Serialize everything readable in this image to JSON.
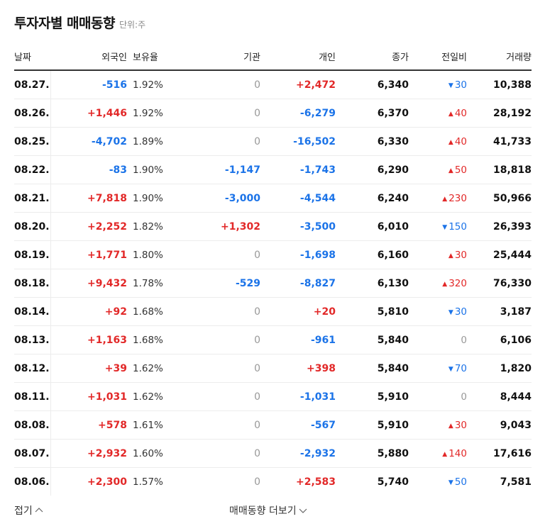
{
  "title": "투자자별 매매동향",
  "unit": "단위:주",
  "headers": {
    "date": "날짜",
    "foreign": "외국인",
    "holding": "보유율",
    "institution": "기관",
    "individual": "개인",
    "close": "종가",
    "change": "전일비",
    "volume": "거래량"
  },
  "rows": [
    {
      "date": "08.27.",
      "foreign": "-516",
      "holding": "1.92%",
      "institution": "0",
      "individual": "+2,472",
      "close": "6,340",
      "change": "30",
      "change_dir": "down",
      "volume": "10,388"
    },
    {
      "date": "08.26.",
      "foreign": "+1,446",
      "holding": "1.92%",
      "institution": "0",
      "individual": "-6,279",
      "close": "6,370",
      "change": "40",
      "change_dir": "up",
      "volume": "28,192"
    },
    {
      "date": "08.25.",
      "foreign": "-4,702",
      "holding": "1.89%",
      "institution": "0",
      "individual": "-16,502",
      "close": "6,330",
      "change": "40",
      "change_dir": "up",
      "volume": "41,733"
    },
    {
      "date": "08.22.",
      "foreign": "-83",
      "holding": "1.90%",
      "institution": "-1,147",
      "individual": "-1,743",
      "close": "6,290",
      "change": "50",
      "change_dir": "up",
      "volume": "18,818"
    },
    {
      "date": "08.21.",
      "foreign": "+7,818",
      "holding": "1.90%",
      "institution": "-3,000",
      "individual": "-4,544",
      "close": "6,240",
      "change": "230",
      "change_dir": "up",
      "volume": "50,966"
    },
    {
      "date": "08.20.",
      "foreign": "+2,252",
      "holding": "1.82%",
      "institution": "+1,302",
      "individual": "-3,500",
      "close": "6,010",
      "change": "150",
      "change_dir": "down",
      "volume": "26,393"
    },
    {
      "date": "08.19.",
      "foreign": "+1,771",
      "holding": "1.80%",
      "institution": "0",
      "individual": "-1,698",
      "close": "6,160",
      "change": "30",
      "change_dir": "up",
      "volume": "25,444"
    },
    {
      "date": "08.18.",
      "foreign": "+9,432",
      "holding": "1.78%",
      "institution": "-529",
      "individual": "-8,827",
      "close": "6,130",
      "change": "320",
      "change_dir": "up",
      "volume": "76,330"
    },
    {
      "date": "08.14.",
      "foreign": "+92",
      "holding": "1.68%",
      "institution": "0",
      "individual": "+20",
      "close": "5,810",
      "change": "30",
      "change_dir": "down",
      "volume": "3,187"
    },
    {
      "date": "08.13.",
      "foreign": "+1,163",
      "holding": "1.68%",
      "institution": "0",
      "individual": "-961",
      "close": "5,840",
      "change": "0",
      "change_dir": "none",
      "volume": "6,106"
    },
    {
      "date": "08.12.",
      "foreign": "+39",
      "holding": "1.62%",
      "institution": "0",
      "individual": "+398",
      "close": "5,840",
      "change": "70",
      "change_dir": "down",
      "volume": "1,820"
    },
    {
      "date": "08.11.",
      "foreign": "+1,031",
      "holding": "1.62%",
      "institution": "0",
      "individual": "-1,031",
      "close": "5,910",
      "change": "0",
      "change_dir": "none",
      "volume": "8,444"
    },
    {
      "date": "08.08.",
      "foreign": "+578",
      "holding": "1.61%",
      "institution": "0",
      "individual": "-567",
      "close": "5,910",
      "change": "30",
      "change_dir": "up",
      "volume": "9,043"
    },
    {
      "date": "08.07.",
      "foreign": "+2,932",
      "holding": "1.60%",
      "institution": "0",
      "individual": "-2,932",
      "close": "5,880",
      "change": "140",
      "change_dir": "up",
      "volume": "17,616"
    },
    {
      "date": "08.06.",
      "foreign": "+2,300",
      "holding": "1.57%",
      "institution": "0",
      "individual": "+2,583",
      "close": "5,740",
      "change": "50",
      "change_dir": "down",
      "volume": "7,581"
    }
  ],
  "footer": {
    "fold_label": "접기",
    "fold_icon": "chevron-up-icon",
    "more_label": "매매동향 더보기",
    "more_icon": "chevron-down-icon"
  },
  "colors": {
    "up": "#e22828",
    "down": "#1b73e8",
    "zero": "#999999"
  }
}
